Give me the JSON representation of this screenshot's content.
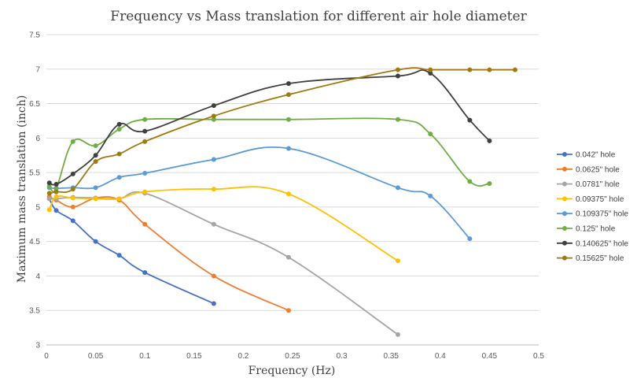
{
  "chart_data": {
    "type": "line",
    "title": "Frequency vs Mass translation for different air hole diameter",
    "xlabel": "Frequency (Hz)",
    "ylabel": "Maximum mass translation (inch)",
    "xlim": [
      0,
      0.5
    ],
    "ylim": [
      3,
      7.5
    ],
    "x_ticks": [
      "0",
      "0.05",
      "0.1",
      "0.15",
      "0.2",
      "0.25",
      "0.3",
      "0.35",
      "0.4",
      "0.45",
      "0.5"
    ],
    "y_ticks": [
      "3",
      "3.5",
      "4",
      "4.5",
      "5",
      "5.5",
      "6",
      "6.5",
      "7",
      "7.5"
    ],
    "grid": "horizontal",
    "legend": "right",
    "series": [
      {
        "name": "0.042\" hole",
        "color": "#4472c4",
        "x": [
          0.003,
          0.01,
          0.027,
          0.05,
          0.074,
          0.1,
          0.17
        ],
        "y": [
          5.12,
          4.95,
          4.8,
          4.5,
          4.3,
          4.05,
          3.6
        ]
      },
      {
        "name": "0.0625\" hole",
        "color": "#ed7d31",
        "x": [
          0.003,
          0.01,
          0.027,
          0.05,
          0.074,
          0.1,
          0.17,
          0.246
        ],
        "y": [
          5.15,
          5.1,
          5.0,
          5.13,
          5.1,
          4.75,
          4.0,
          3.5
        ]
      },
      {
        "name": "0.0781\" hole",
        "color": "#a5a5a5",
        "x": [
          0.003,
          0.01,
          0.027,
          0.05,
          0.074,
          0.1,
          0.17,
          0.246,
          0.357
        ],
        "y": [
          5.12,
          5.12,
          5.14,
          5.13,
          5.12,
          5.2,
          4.75,
          4.27,
          3.15
        ]
      },
      {
        "name": "0.09375\" hole",
        "color": "#ffc000",
        "x": [
          0.003,
          0.01,
          0.027,
          0.05,
          0.074,
          0.1,
          0.17,
          0.246,
          0.357
        ],
        "y": [
          4.96,
          5.15,
          5.13,
          5.12,
          5.12,
          5.22,
          5.26,
          5.19,
          4.22
        ]
      },
      {
        "name": "0.109375\" hole",
        "color": "#5b9bd5",
        "x": [
          0.003,
          0.01,
          0.027,
          0.05,
          0.074,
          0.1,
          0.17,
          0.246,
          0.357,
          0.39,
          0.43
        ],
        "y": [
          5.28,
          5.27,
          5.28,
          5.28,
          5.43,
          5.49,
          5.69,
          5.85,
          5.28,
          5.16,
          4.54
        ]
      },
      {
        "name": "0.125\" hole",
        "color": "#70ad47",
        "x": [
          0.003,
          0.01,
          0.027,
          0.05,
          0.074,
          0.1,
          0.17,
          0.246,
          0.357,
          0.39,
          0.43,
          0.45
        ],
        "y": [
          5.3,
          5.27,
          5.95,
          5.89,
          6.13,
          6.27,
          6.27,
          6.27,
          6.27,
          6.06,
          5.37,
          5.34
        ]
      },
      {
        "name": "0.140625\" hole",
        "color": "#404040",
        "x": [
          0.003,
          0.01,
          0.027,
          0.05,
          0.074,
          0.1,
          0.17,
          0.246,
          0.357,
          0.39,
          0.43,
          0.45
        ],
        "y": [
          5.35,
          5.33,
          5.48,
          5.75,
          6.2,
          6.1,
          6.47,
          6.79,
          6.9,
          6.94,
          6.26,
          5.96
        ]
      },
      {
        "name": "0.15625\" hole",
        "color": "#9e7a10",
        "x": [
          0.003,
          0.01,
          0.027,
          0.05,
          0.074,
          0.1,
          0.17,
          0.246,
          0.357,
          0.39,
          0.43,
          0.45,
          0.476
        ],
        "y": [
          5.2,
          5.22,
          5.26,
          5.66,
          5.77,
          5.95,
          6.32,
          6.63,
          6.99,
          6.99,
          6.99,
          6.99,
          6.99
        ]
      }
    ]
  }
}
